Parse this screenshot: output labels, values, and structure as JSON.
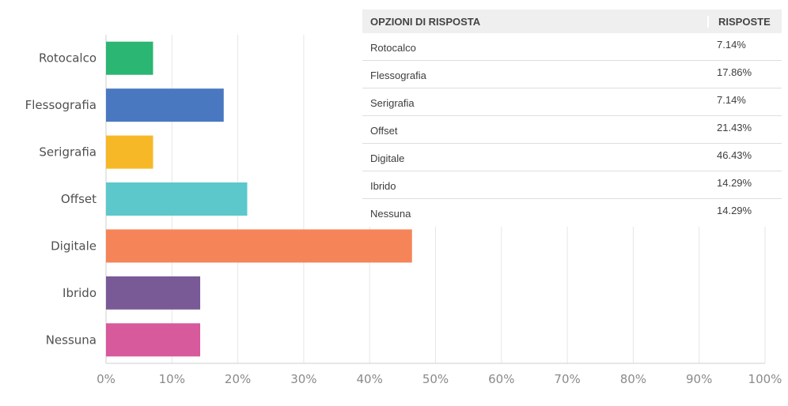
{
  "chart_data": {
    "type": "bar",
    "orientation": "horizontal",
    "categories": [
      "Rotocalco",
      "Flessografia",
      "Serigrafia",
      "Offset",
      "Digitale",
      "Ibrido",
      "Nessuna"
    ],
    "values": [
      7.14,
      17.86,
      7.14,
      21.43,
      46.43,
      14.29,
      14.29
    ],
    "colors": [
      "#2bb673",
      "#4a78c0",
      "#f6b827",
      "#5cc8cc",
      "#f58558",
      "#7a5a96",
      "#d75a9d"
    ],
    "xlim": [
      0,
      100
    ],
    "xticks": [
      "0%",
      "10%",
      "20%",
      "30%",
      "40%",
      "50%",
      "60%",
      "70%",
      "80%",
      "90%",
      "100%"
    ],
    "grid": true,
    "title": "",
    "xlabel": "",
    "ylabel": ""
  },
  "table": {
    "header_option": "OPZIONI DI RISPOSTA",
    "header_responses": "RISPOSTE",
    "rows": [
      {
        "option": "Rotocalco",
        "value": "7.14%"
      },
      {
        "option": "Flessografia",
        "value": "17.86%"
      },
      {
        "option": "Serigrafia",
        "value": "7.14%"
      },
      {
        "option": "Offset",
        "value": "21.43%"
      },
      {
        "option": "Digitale",
        "value": "46.43%"
      },
      {
        "option": "Ibrido",
        "value": "14.29%"
      },
      {
        "option": "Nessuna",
        "value": "14.29%"
      }
    ]
  }
}
